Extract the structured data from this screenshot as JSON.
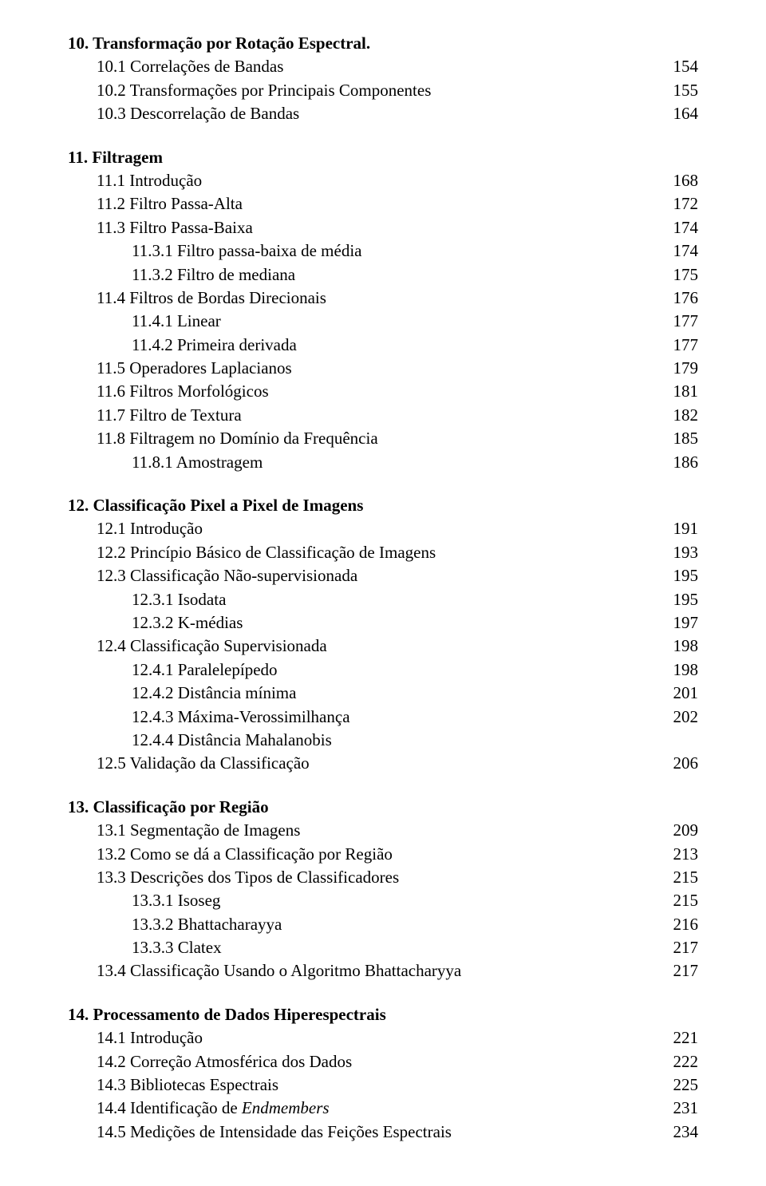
{
  "sections": [
    {
      "heading": "10. Transformação por Rotação Espectral.",
      "items": [
        {
          "label": "10.1 Correlações de Bandas",
          "page": "154",
          "indent": 1
        },
        {
          "label": "10.2 Transformações por Principais Componentes",
          "page": "155",
          "indent": 1
        },
        {
          "label": "10.3 Descorrelação de Bandas",
          "page": "164",
          "indent": 1
        }
      ]
    },
    {
      "heading": "11. Filtragem",
      "items": [
        {
          "label": "11.1 Introdução",
          "page": "168",
          "indent": 1
        },
        {
          "label": "11.2 Filtro Passa-Alta",
          "page": "172",
          "indent": 1
        },
        {
          "label": "11.3 Filtro Passa-Baixa",
          "page": "174",
          "indent": 1
        },
        {
          "label": "11.3.1 Filtro passa-baixa de média",
          "page": "174",
          "indent": 2
        },
        {
          "label": "11.3.2 Filtro de mediana",
          "page": "175",
          "indent": 2
        },
        {
          "label": "11.4 Filtros de Bordas Direcionais",
          "page": "176",
          "indent": 1
        },
        {
          "label": "11.4.1 Linear",
          "page": "177",
          "indent": 2
        },
        {
          "label": "11.4.2 Primeira derivada",
          "page": "177",
          "indent": 2
        },
        {
          "label": "11.5 Operadores Laplacianos",
          "page": "179",
          "indent": 1
        },
        {
          "label": "11.6 Filtros Morfológicos",
          "page": "181",
          "indent": 1
        },
        {
          "label": "11.7 Filtro de Textura",
          "page": "182",
          "indent": 1
        },
        {
          "label": "11.8 Filtragem no Domínio da Frequência",
          "page": "185",
          "indent": 1
        },
        {
          "label": "11.8.1 Amostragem",
          "page": "186",
          "indent": 2
        }
      ]
    },
    {
      "heading": "12. Classificação Pixel a Pixel de Imagens",
      "items": [
        {
          "label": "12.1 Introdução",
          "page": "191",
          "indent": 1
        },
        {
          "label": "12.2 Princípio Básico de Classificação de Imagens",
          "page": "193",
          "indent": 1
        },
        {
          "label": "12.3 Classificação Não-supervisionada",
          "page": "195",
          "indent": 1
        },
        {
          "label": "12.3.1 Isodata",
          "page": "195",
          "indent": 2
        },
        {
          "label": "12.3.2 K-médias",
          "page": "197",
          "indent": 2
        },
        {
          "label": "12.4 Classificação Supervisionada",
          "page": "198",
          "indent": 1
        },
        {
          "label": "12.4.1 Paralelepípedo",
          "page": "198",
          "indent": 2
        },
        {
          "label": "12.4.2 Distância mínima",
          "page": "201",
          "indent": 2
        },
        {
          "label": "12.4.3 Máxima-Verossimilhança",
          "page": "202",
          "indent": 2
        },
        {
          "label": "12.4.4 Distância Mahalanobis",
          "page": "",
          "indent": 2
        },
        {
          "label": "12.5 Validação da Classificação",
          "page": "206",
          "indent": 1
        }
      ]
    },
    {
      "heading": "13. Classificação por Região",
      "items": [
        {
          "label": "13.1 Segmentação de Imagens",
          "page": "209",
          "indent": 1
        },
        {
          "label": "13.2 Como se dá a Classificação por Região",
          "page": "213",
          "indent": 1
        },
        {
          "label": "13.3 Descrições dos Tipos de Classificadores",
          "page": "215",
          "indent": 1
        },
        {
          "label": "13.3.1 Isoseg",
          "page": "215",
          "indent": 2
        },
        {
          "label": "13.3.2 Bhattacharayya",
          "page": "216",
          "indent": 2
        },
        {
          "label": "13.3.3 Clatex",
          "page": "217",
          "indent": 2
        },
        {
          "label": "13.4 Classificação Usando o Algoritmo Bhattacharyya",
          "page": "217",
          "indent": 1
        }
      ]
    },
    {
      "heading": "14. Processamento de Dados Hiperespectrais",
      "items": [
        {
          "label": "14.1 Introdução",
          "page": "221",
          "indent": 1
        },
        {
          "label": "14.2 Correção Atmosférica dos Dados",
          "page": "222",
          "indent": 1
        },
        {
          "label": "14.3 Bibliotecas Espectrais",
          "page": "225",
          "indent": 1
        },
        {
          "label": "14.4 Identificação de ",
          "label_em": "Endmembers",
          "page": "231",
          "indent": 1
        },
        {
          "label": "14.5 Medições de Intensidade das Feições Espectrais",
          "page": "234",
          "indent": 1
        }
      ]
    }
  ]
}
